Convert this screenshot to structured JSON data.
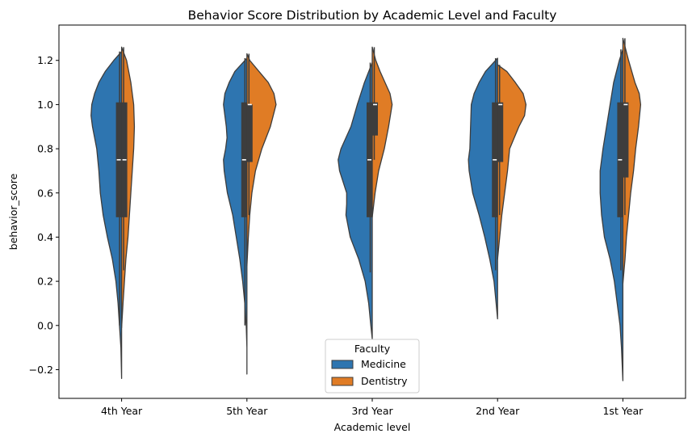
{
  "chart_data": {
    "type": "violin",
    "title": "Behavior Score Distribution by Academic Level and Faculty",
    "xlabel": "Academic level",
    "ylabel": "behavior_score",
    "ylim": [
      -0.33,
      1.36
    ],
    "yticks": [
      "−0.2",
      "0.0",
      "0.2",
      "0.4",
      "0.6",
      "0.8",
      "1.0",
      "1.2"
    ],
    "ytick_values": [
      -0.2,
      0.0,
      0.2,
      0.4,
      0.6,
      0.8,
      1.0,
      1.2
    ],
    "categories": [
      "4th Year",
      "5th Year",
      "3rd Year",
      "2nd Year",
      "1st Year"
    ],
    "split": true,
    "grid": false,
    "legend": {
      "title": "Faculty",
      "placement": "lower-center",
      "entries": [
        "Medicine",
        "Dentistry"
      ]
    },
    "series": [
      {
        "name": "Medicine",
        "color": "#2e75b0",
        "side": "left",
        "violins": [
          {
            "ymin": -0.24,
            "ymax": 1.24,
            "quartiles": [
              0.49,
              0.75,
              1.01
            ],
            "whiskers": [
              0.0,
              1.24
            ],
            "profile": [
              [
                -0.24,
                0.0
              ],
              [
                -0.1,
                0.02
              ],
              [
                0.0,
                0.06
              ],
              [
                0.1,
                0.1
              ],
              [
                0.2,
                0.16
              ],
              [
                0.3,
                0.26
              ],
              [
                0.4,
                0.4
              ],
              [
                0.5,
                0.52
              ],
              [
                0.6,
                0.6
              ],
              [
                0.7,
                0.64
              ],
              [
                0.8,
                0.7
              ],
              [
                0.9,
                0.82
              ],
              [
                0.95,
                0.86
              ],
              [
                1.0,
                0.84
              ],
              [
                1.05,
                0.76
              ],
              [
                1.1,
                0.64
              ],
              [
                1.15,
                0.46
              ],
              [
                1.2,
                0.22
              ],
              [
                1.24,
                0.0
              ]
            ]
          },
          {
            "ymin": -0.22,
            "ymax": 1.21,
            "quartiles": [
              0.49,
              0.75,
              1.01
            ],
            "whiskers": [
              0.0,
              1.21
            ],
            "profile": [
              [
                -0.22,
                0.0
              ],
              [
                -0.1,
                0.0
              ],
              [
                0.0,
                0.02
              ],
              [
                0.1,
                0.06
              ],
              [
                0.2,
                0.12
              ],
              [
                0.3,
                0.2
              ],
              [
                0.4,
                0.3
              ],
              [
                0.5,
                0.4
              ],
              [
                0.6,
                0.55
              ],
              [
                0.7,
                0.64
              ],
              [
                0.75,
                0.66
              ],
              [
                0.8,
                0.6
              ],
              [
                0.85,
                0.56
              ],
              [
                0.9,
                0.58
              ],
              [
                1.0,
                0.66
              ],
              [
                1.05,
                0.62
              ],
              [
                1.1,
                0.5
              ],
              [
                1.15,
                0.34
              ],
              [
                1.21,
                0.0
              ]
            ]
          },
          {
            "ymin": -0.06,
            "ymax": 1.19,
            "quartiles": [
              0.49,
              0.75,
              1.01
            ],
            "whiskers": [
              0.24,
              1.19
            ],
            "profile": [
              [
                -0.06,
                0.0
              ],
              [
                0.0,
                0.04
              ],
              [
                0.1,
                0.1
              ],
              [
                0.2,
                0.2
              ],
              [
                0.3,
                0.38
              ],
              [
                0.4,
                0.62
              ],
              [
                0.5,
                0.74
              ],
              [
                0.55,
                0.72
              ],
              [
                0.6,
                0.72
              ],
              [
                0.7,
                0.92
              ],
              [
                0.75,
                0.96
              ],
              [
                0.8,
                0.88
              ],
              [
                0.9,
                0.6
              ],
              [
                1.0,
                0.42
              ],
              [
                1.1,
                0.22
              ],
              [
                1.19,
                0.0
              ]
            ]
          },
          {
            "ymin": 0.03,
            "ymax": 1.21,
            "quartiles": [
              0.49,
              0.75,
              1.01
            ],
            "whiskers": [
              0.25,
              1.21
            ],
            "profile": [
              [
                0.03,
                0.0
              ],
              [
                0.1,
                0.04
              ],
              [
                0.2,
                0.1
              ],
              [
                0.3,
                0.22
              ],
              [
                0.4,
                0.36
              ],
              [
                0.5,
                0.52
              ],
              [
                0.6,
                0.7
              ],
              [
                0.7,
                0.8
              ],
              [
                0.75,
                0.82
              ],
              [
                0.8,
                0.78
              ],
              [
                0.9,
                0.76
              ],
              [
                1.0,
                0.74
              ],
              [
                1.05,
                0.66
              ],
              [
                1.1,
                0.52
              ],
              [
                1.15,
                0.34
              ],
              [
                1.21,
                0.0
              ]
            ]
          },
          {
            "ymin": -0.25,
            "ymax": 1.25,
            "quartiles": [
              0.49,
              0.75,
              1.01
            ],
            "whiskers": [
              0.25,
              1.25
            ],
            "profile": [
              [
                -0.25,
                0.0
              ],
              [
                -0.1,
                0.04
              ],
              [
                0.0,
                0.08
              ],
              [
                0.1,
                0.16
              ],
              [
                0.2,
                0.24
              ],
              [
                0.3,
                0.36
              ],
              [
                0.4,
                0.52
              ],
              [
                0.5,
                0.6
              ],
              [
                0.6,
                0.64
              ],
              [
                0.7,
                0.64
              ],
              [
                0.8,
                0.56
              ],
              [
                0.9,
                0.46
              ],
              [
                1.0,
                0.36
              ],
              [
                1.1,
                0.26
              ],
              [
                1.2,
                0.1
              ],
              [
                1.25,
                0.0
              ]
            ]
          }
        ]
      },
      {
        "name": "Dentistry",
        "color": "#e07c25",
        "side": "right",
        "violins": [
          {
            "ymin": -0.01,
            "ymax": 1.26,
            "quartiles": [
              0.49,
              0.75,
              1.01
            ],
            "whiskers": [
              0.25,
              1.26
            ],
            "profile": [
              [
                -0.01,
                0.0
              ],
              [
                0.1,
                0.04
              ],
              [
                0.2,
                0.08
              ],
              [
                0.3,
                0.12
              ],
              [
                0.4,
                0.18
              ],
              [
                0.5,
                0.22
              ],
              [
                0.6,
                0.26
              ],
              [
                0.7,
                0.3
              ],
              [
                0.8,
                0.34
              ],
              [
                0.9,
                0.36
              ],
              [
                1.0,
                0.34
              ],
              [
                1.1,
                0.26
              ],
              [
                1.2,
                0.14
              ],
              [
                1.26,
                0.0
              ]
            ]
          },
          {
            "ymin": 0.27,
            "ymax": 1.23,
            "quartiles": [
              0.74,
              1.0,
              1.0
            ],
            "whiskers": [
              0.5,
              1.23
            ],
            "profile": [
              [
                0.27,
                0.0
              ],
              [
                0.4,
                0.04
              ],
              [
                0.5,
                0.08
              ],
              [
                0.6,
                0.14
              ],
              [
                0.7,
                0.24
              ],
              [
                0.8,
                0.42
              ],
              [
                0.9,
                0.66
              ],
              [
                1.0,
                0.82
              ],
              [
                1.05,
                0.76
              ],
              [
                1.1,
                0.6
              ],
              [
                1.15,
                0.34
              ],
              [
                1.2,
                0.08
              ],
              [
                1.23,
                0.0
              ]
            ]
          },
          {
            "ymin": 0.49,
            "ymax": 1.26,
            "quartiles": [
              0.86,
              1.0,
              1.01
            ],
            "whiskers": [
              0.75,
              1.26
            ],
            "profile": [
              [
                0.49,
                0.0
              ],
              [
                0.6,
                0.08
              ],
              [
                0.7,
                0.18
              ],
              [
                0.8,
                0.34
              ],
              [
                0.9,
                0.46
              ],
              [
                1.0,
                0.56
              ],
              [
                1.05,
                0.5
              ],
              [
                1.1,
                0.36
              ],
              [
                1.15,
                0.22
              ],
              [
                1.2,
                0.1
              ],
              [
                1.26,
                0.0
              ]
            ]
          },
          {
            "ymin": 0.3,
            "ymax": 1.18,
            "quartiles": [
              0.74,
              1.0,
              1.01
            ],
            "whiskers": [
              0.5,
              1.18
            ],
            "profile": [
              [
                0.3,
                0.0
              ],
              [
                0.4,
                0.06
              ],
              [
                0.5,
                0.12
              ],
              [
                0.6,
                0.2
              ],
              [
                0.7,
                0.28
              ],
              [
                0.8,
                0.34
              ],
              [
                0.9,
                0.6
              ],
              [
                0.95,
                0.76
              ],
              [
                1.0,
                0.8
              ],
              [
                1.05,
                0.72
              ],
              [
                1.1,
                0.5
              ],
              [
                1.15,
                0.26
              ],
              [
                1.18,
                0.0
              ]
            ]
          },
          {
            "ymin": 0.19,
            "ymax": 1.3,
            "quartiles": [
              0.67,
              1.0,
              1.01
            ],
            "whiskers": [
              0.5,
              1.3
            ],
            "profile": [
              [
                0.19,
                0.0
              ],
              [
                0.3,
                0.06
              ],
              [
                0.4,
                0.1
              ],
              [
                0.5,
                0.16
              ],
              [
                0.6,
                0.22
              ],
              [
                0.7,
                0.3
              ],
              [
                0.8,
                0.36
              ],
              [
                0.9,
                0.44
              ],
              [
                1.0,
                0.5
              ],
              [
                1.05,
                0.46
              ],
              [
                1.1,
                0.34
              ],
              [
                1.2,
                0.16
              ],
              [
                1.3,
                0.0
              ]
            ]
          }
        ]
      }
    ]
  }
}
